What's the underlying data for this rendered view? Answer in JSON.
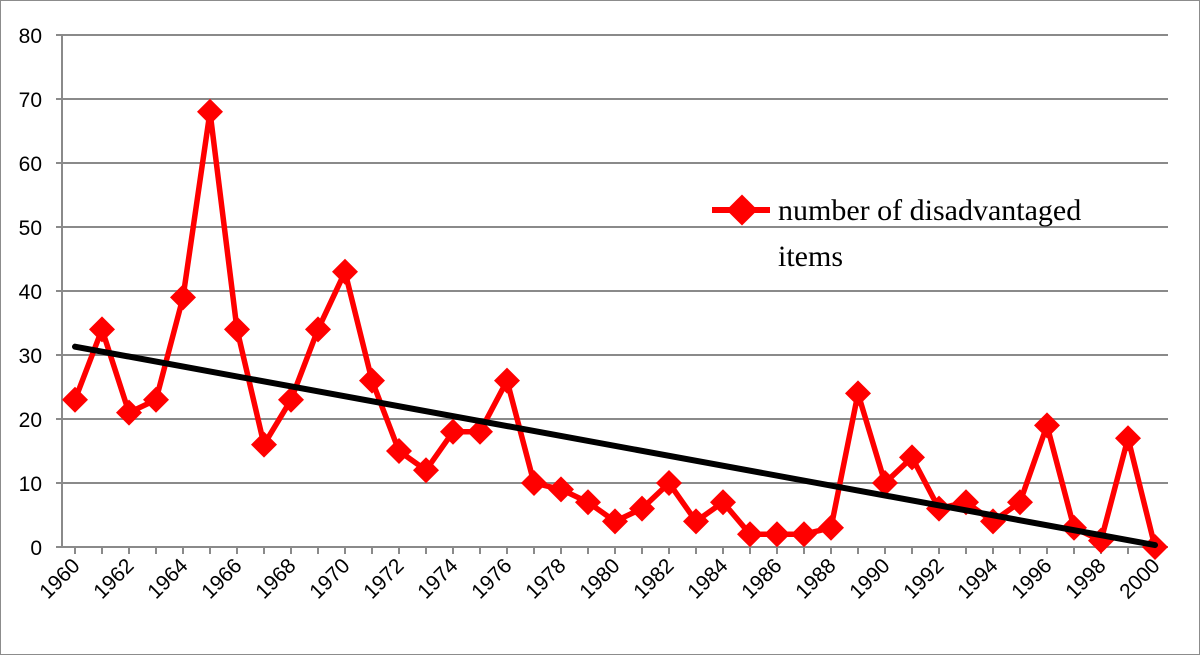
{
  "chart_data": {
    "type": "line",
    "x": [
      1960,
      1961,
      1962,
      1963,
      1964,
      1965,
      1966,
      1967,
      1968,
      1969,
      1970,
      1971,
      1972,
      1973,
      1974,
      1975,
      1976,
      1977,
      1978,
      1979,
      1980,
      1981,
      1982,
      1983,
      1984,
      1985,
      1986,
      1987,
      1988,
      1989,
      1990,
      1991,
      1992,
      1993,
      1994,
      1995,
      1996,
      1997,
      1998,
      1999,
      2000
    ],
    "x_tick_labels": [
      "1960",
      "1962",
      "1964",
      "1966",
      "1968",
      "1970",
      "1972",
      "1974",
      "1976",
      "1978",
      "1980",
      "1982",
      "1984",
      "1986",
      "1988",
      "1990",
      "1992",
      "1994",
      "1996",
      "1998",
      "2000"
    ],
    "y_tick_labels": [
      "0",
      "10",
      "20",
      "30",
      "40",
      "50",
      "60",
      "70",
      "80"
    ],
    "ylim": [
      0,
      80
    ],
    "grid": true,
    "series": [
      {
        "name": "number of disadvantaged items",
        "color": "#ff0000",
        "marker": "diamond",
        "values": [
          23,
          34,
          21,
          23,
          39,
          68,
          34,
          16,
          23,
          34,
          43,
          26,
          15,
          12,
          18,
          18,
          26,
          10,
          9,
          7,
          4,
          6,
          10,
          4,
          7,
          2,
          2,
          2,
          3,
          24,
          10,
          14,
          6,
          7,
          4,
          7,
          19,
          3,
          1,
          17,
          0
        ]
      }
    ],
    "trendline": {
      "color": "#000000",
      "start": [
        1960,
        31.3
      ],
      "end": [
        2000,
        0.3
      ]
    },
    "legend": {
      "placement": "right",
      "label_line1": "number of disadvantaged",
      "label_line2": "items"
    }
  }
}
